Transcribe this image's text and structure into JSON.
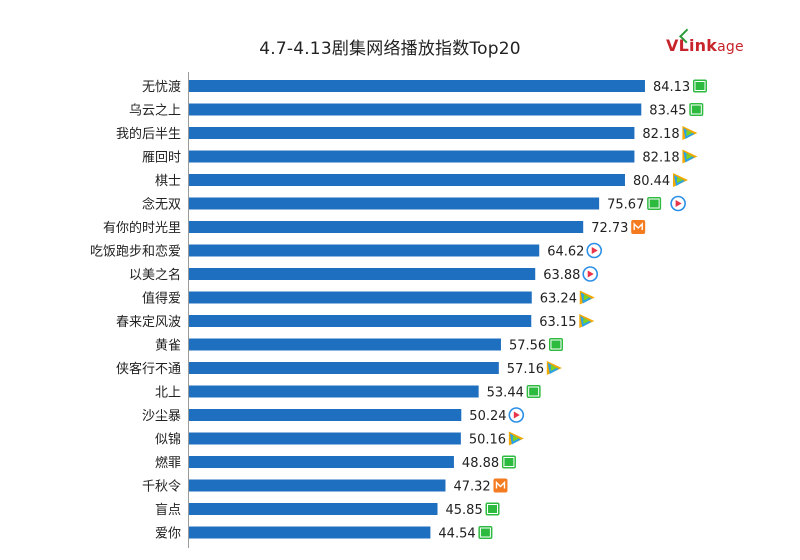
{
  "title": "4.7-4.13剧集网络播放指数Top20",
  "logo": {
    "prefix": "VLink",
    "suffix": "age"
  },
  "colors": {
    "bar": "#1f6fc0",
    "iqiyi": "#2dbb3f",
    "tencent": "#f2a900",
    "youku": "#e8354a",
    "mgtv": "#f47b20"
  },
  "chart_data": {
    "type": "bar",
    "orientation": "horizontal",
    "title": "4.7-4.13剧集网络播放指数Top20",
    "categories": [
      "无忧渡",
      "乌云之上",
      "我的后半生",
      "雁回时",
      "棋士",
      "念无双",
      "有你的时光里",
      "吃饭跑步和恋爱",
      "以美之名",
      "值得爱",
      "春来定风波",
      "黄雀",
      "侠客行不通",
      "北上",
      "沙尘暴",
      "似锦",
      "燃罪",
      "千秋令",
      "盲点",
      "爱你"
    ],
    "values": [
      84.13,
      83.45,
      82.18,
      82.18,
      80.44,
      75.67,
      72.73,
      64.62,
      63.88,
      63.24,
      63.15,
      57.56,
      57.16,
      53.44,
      50.24,
      50.16,
      48.88,
      47.32,
      45.85,
      44.54
    ],
    "platforms": [
      [
        "iqiyi-icon"
      ],
      [
        "iqiyi-icon"
      ],
      [
        "tencent-icon"
      ],
      [
        "tencent-icon"
      ],
      [
        "tencent-icon"
      ],
      [
        "iqiyi-icon",
        "youku-icon"
      ],
      [
        "mgtv-icon"
      ],
      [
        "youku-icon"
      ],
      [
        "youku-icon"
      ],
      [
        "tencent-icon"
      ],
      [
        "tencent-icon"
      ],
      [
        "iqiyi-icon"
      ],
      [
        "tencent-icon"
      ],
      [
        "iqiyi-icon"
      ],
      [
        "youku-icon"
      ],
      [
        "tencent-icon"
      ],
      [
        "iqiyi-icon"
      ],
      [
        "mgtv-icon"
      ],
      [
        "iqiyi-icon"
      ],
      [
        "iqiyi-icon"
      ]
    ],
    "xlim": [
      0,
      100
    ],
    "grid": false,
    "legend": "none"
  }
}
